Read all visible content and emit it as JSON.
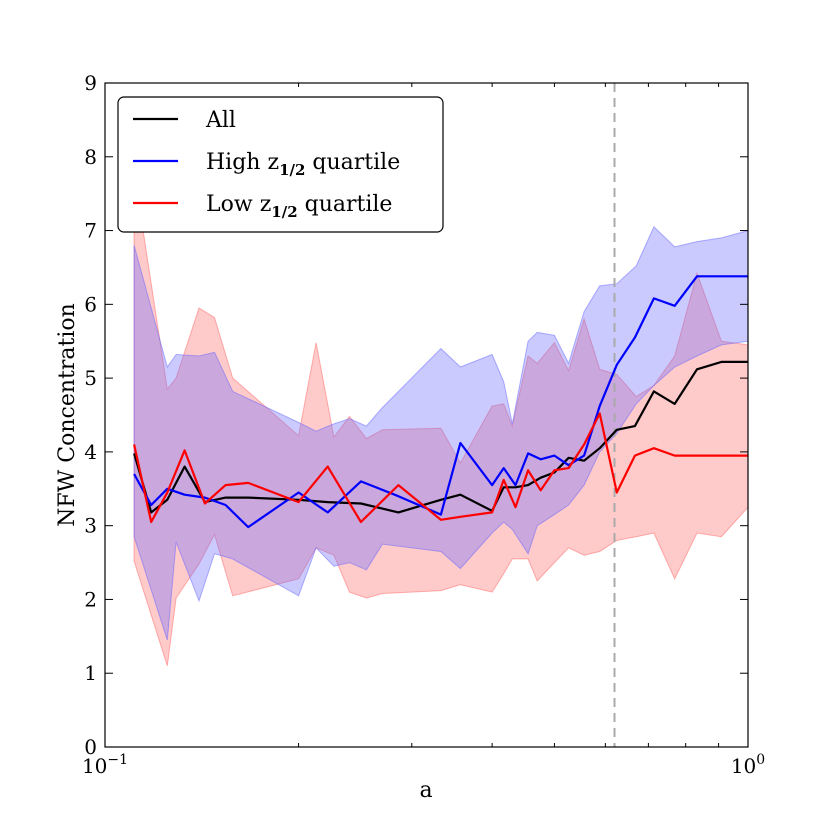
{
  "chart_data": {
    "type": "line",
    "xlabel": "a",
    "ylabel": "NFW Concentration",
    "xscale": "log",
    "xlim": [
      0.1,
      1.0
    ],
    "ylim": [
      0,
      9
    ],
    "yticks": [
      0,
      1,
      2,
      3,
      4,
      5,
      6,
      7,
      8,
      9
    ],
    "xtick_labels": [
      {
        "value": 0.1,
        "base": "10",
        "exp": "−1"
      },
      {
        "value": 1.0,
        "base": "10",
        "exp": "0"
      }
    ],
    "vline": {
      "x": 0.62,
      "style": "dashed",
      "color": "#aaaaaa"
    },
    "legend": {
      "position": "top-left",
      "entries": [
        {
          "series": "all",
          "label": "All"
        },
        {
          "series": "high",
          "label_prefix": "High ",
          "label_math_base": "z",
          "label_math_sub": "1/2",
          "label_suffix": " quartile"
        },
        {
          "series": "low",
          "label_prefix": "Low ",
          "label_math_base": "z",
          "label_math_sub": "1/2",
          "label_suffix": " quartile"
        }
      ]
    },
    "bands": [
      {
        "series": "low",
        "color": "#ff6666",
        "x": [
          0.111,
          0.125,
          0.129,
          0.14,
          0.148,
          0.158,
          0.2,
          0.213,
          0.227,
          0.24,
          0.255,
          0.27,
          0.333,
          0.357,
          0.4,
          0.417,
          0.43,
          0.455,
          0.47,
          0.5,
          0.526,
          0.556,
          0.588,
          0.625,
          0.67,
          0.714,
          0.769,
          0.833,
          0.909,
          1.0
        ],
        "upper": [
          7.8,
          4.85,
          5.0,
          5.95,
          5.82,
          5.0,
          4.22,
          5.48,
          4.2,
          4.48,
          4.18,
          4.3,
          4.32,
          3.85,
          4.62,
          4.65,
          4.35,
          5.3,
          5.2,
          5.48,
          5.1,
          5.8,
          5.12,
          5.05,
          4.75,
          4.9,
          5.3,
          6.42,
          5.5,
          5.45
        ],
        "lower": [
          2.52,
          1.1,
          2.02,
          2.48,
          2.88,
          2.05,
          2.28,
          2.7,
          2.6,
          2.1,
          2.02,
          2.08,
          2.12,
          2.2,
          2.1,
          2.35,
          2.55,
          2.55,
          2.25,
          2.5,
          2.7,
          2.6,
          2.65,
          2.8,
          2.85,
          2.9,
          2.28,
          2.9,
          2.85,
          3.25
        ]
      },
      {
        "series": "high",
        "color": "#6666ff",
        "x": [
          0.111,
          0.125,
          0.129,
          0.14,
          0.148,
          0.158,
          0.2,
          0.213,
          0.227,
          0.24,
          0.255,
          0.27,
          0.333,
          0.357,
          0.4,
          0.417,
          0.43,
          0.455,
          0.47,
          0.5,
          0.526,
          0.556,
          0.588,
          0.625,
          0.67,
          0.714,
          0.769,
          0.833,
          0.909,
          1.0
        ],
        "upper": [
          6.8,
          5.15,
          5.32,
          5.3,
          5.35,
          4.82,
          4.4,
          4.28,
          4.38,
          4.45,
          4.35,
          4.6,
          5.4,
          5.15,
          5.32,
          4.95,
          4.38,
          5.5,
          5.62,
          5.58,
          5.2,
          5.9,
          6.25,
          6.28,
          6.52,
          7.05,
          6.78,
          6.85,
          6.9,
          7.0
        ],
        "lower": [
          2.85,
          1.45,
          2.78,
          1.98,
          2.62,
          2.55,
          2.05,
          2.7,
          2.45,
          2.5,
          2.4,
          2.75,
          2.65,
          2.42,
          2.9,
          3.05,
          2.95,
          2.62,
          3.0,
          3.15,
          3.28,
          3.55,
          4.0,
          4.25,
          4.65,
          4.9,
          5.15,
          5.3,
          5.45,
          5.5
        ]
      }
    ],
    "series": [
      {
        "name": "all",
        "color": "#000000",
        "x": [
          0.111,
          0.118,
          0.125,
          0.133,
          0.143,
          0.154,
          0.167,
          0.2,
          0.222,
          0.25,
          0.286,
          0.333,
          0.357,
          0.4,
          0.417,
          0.435,
          0.455,
          0.476,
          0.5,
          0.526,
          0.556,
          0.588,
          0.625,
          0.667,
          0.714,
          0.769,
          0.833,
          0.909,
          1.0
        ],
        "values": [
          3.98,
          3.18,
          3.35,
          3.8,
          3.32,
          3.38,
          3.38,
          3.35,
          3.32,
          3.3,
          3.18,
          3.35,
          3.42,
          3.2,
          3.52,
          3.52,
          3.55,
          3.65,
          3.72,
          3.92,
          3.88,
          4.05,
          4.3,
          4.35,
          4.82,
          4.65,
          5.12,
          5.22,
          5.22
        ]
      },
      {
        "name": "high",
        "color": "#0000ff",
        "x": [
          0.111,
          0.118,
          0.125,
          0.133,
          0.143,
          0.154,
          0.167,
          0.2,
          0.222,
          0.25,
          0.286,
          0.333,
          0.357,
          0.4,
          0.417,
          0.435,
          0.455,
          0.476,
          0.5,
          0.526,
          0.556,
          0.588,
          0.625,
          0.667,
          0.714,
          0.769,
          0.833,
          0.909,
          1.0
        ],
        "values": [
          3.7,
          3.28,
          3.5,
          3.42,
          3.38,
          3.28,
          2.98,
          3.45,
          3.18,
          3.6,
          3.4,
          3.15,
          4.12,
          3.55,
          3.78,
          3.55,
          3.98,
          3.9,
          3.95,
          3.82,
          3.95,
          4.62,
          5.18,
          5.55,
          6.08,
          5.98,
          6.38,
          6.38,
          6.38
        ]
      },
      {
        "name": "low",
        "color": "#ff0000",
        "x": [
          0.111,
          0.118,
          0.125,
          0.133,
          0.143,
          0.154,
          0.167,
          0.2,
          0.222,
          0.25,
          0.286,
          0.333,
          0.357,
          0.4,
          0.417,
          0.435,
          0.455,
          0.476,
          0.5,
          0.526,
          0.556,
          0.588,
          0.625,
          0.667,
          0.714,
          0.769,
          0.833,
          0.909,
          1.0
        ],
        "values": [
          4.1,
          3.05,
          3.45,
          4.02,
          3.3,
          3.55,
          3.58,
          3.32,
          3.8,
          3.05,
          3.55,
          3.08,
          3.12,
          3.18,
          3.62,
          3.25,
          3.75,
          3.48,
          3.75,
          3.78,
          4.1,
          4.52,
          3.45,
          3.95,
          4.05,
          3.95,
          3.95,
          3.95,
          3.95
        ]
      }
    ]
  }
}
